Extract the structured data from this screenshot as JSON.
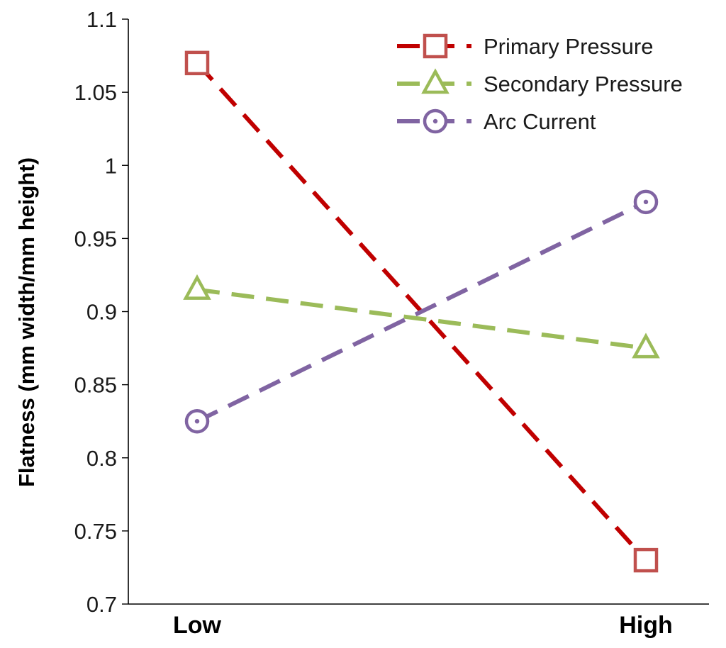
{
  "chart_data": {
    "type": "line",
    "title": "",
    "xlabel": "",
    "ylabel": "Flatness (mm width/mm height)",
    "categories": [
      "Low",
      "High"
    ],
    "ylim": [
      0.7,
      1.1
    ],
    "yticks": [
      0.7,
      0.75,
      0.8,
      0.85,
      0.9,
      0.95,
      1,
      1.05,
      1.1
    ],
    "ytick_labels": [
      "0.7",
      "0.75",
      "0.8",
      "0.85",
      "0.9",
      "0.95",
      "1",
      "1.05",
      "1.1"
    ],
    "grid": false,
    "legend_position": "top-right",
    "series": [
      {
        "name": "Primary Pressure",
        "values": [
          1.07,
          0.73
        ],
        "color": "#c00000",
        "marker": "square",
        "marker_color": "#c0504d"
      },
      {
        "name": "Secondary Pressure",
        "values": [
          0.915,
          0.875
        ],
        "color": "#9bbb59",
        "marker": "triangle",
        "marker_color": "#9bbb59"
      },
      {
        "name": "Arc Current",
        "values": [
          0.825,
          0.975
        ],
        "color": "#8064a2",
        "marker": "circle",
        "marker_color": "#8064a2"
      }
    ]
  }
}
